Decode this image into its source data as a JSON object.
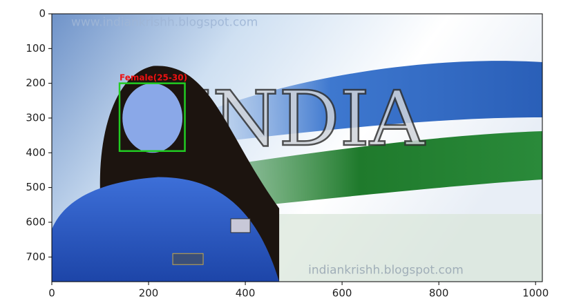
{
  "chart_data": {
    "type": "image",
    "xlim": [
      0,
      1014
    ],
    "ylim": [
      0,
      771
    ],
    "y_inverted": true,
    "xticks": [
      0,
      200,
      400,
      600,
      800,
      1000
    ],
    "yticks": [
      0,
      100,
      200,
      300,
      400,
      500,
      600,
      700
    ],
    "watermark": "www.indiankrishh.blogspot.com",
    "watermark_bottom": "indiankrishh.blogspot.com",
    "image_text": "INDIA",
    "box": {
      "label": "Female(25-30)",
      "x": [
        140,
        275
      ],
      "y": [
        200,
        395
      ],
      "color": "#22cc22",
      "label_color": "#ee1111"
    }
  }
}
